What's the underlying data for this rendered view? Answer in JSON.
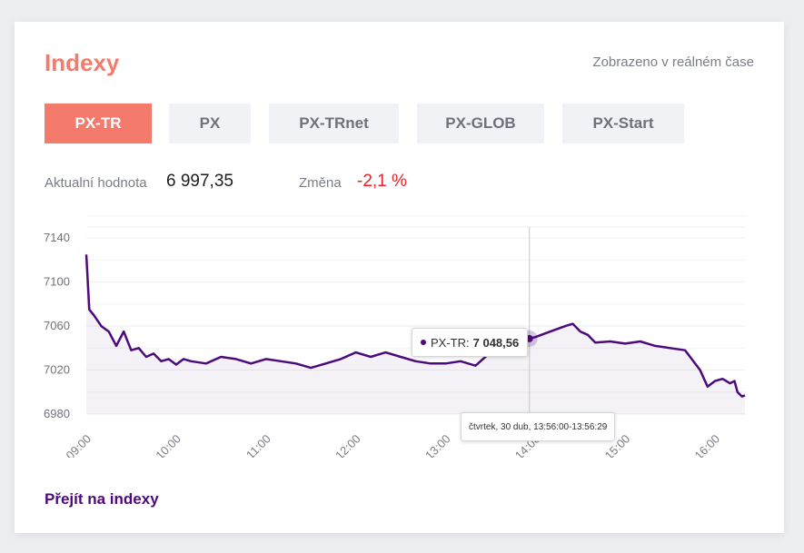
{
  "header": {
    "title": "Indexy",
    "realtime_note": "Zobrazeno v reálném čase"
  },
  "tabs": [
    {
      "label": "PX-TR",
      "active": true
    },
    {
      "label": "PX",
      "active": false
    },
    {
      "label": "PX-TRnet",
      "active": false
    },
    {
      "label": "PX-GLOB",
      "active": false
    },
    {
      "label": "PX-Start",
      "active": false
    }
  ],
  "stats": {
    "current_label": "Aktualní hodnota",
    "current_value": "6 997,35",
    "change_label": "Změna",
    "change_value": "-2,1 %"
  },
  "tooltip": {
    "series_label": "PX-TR:",
    "value": "7 048,56",
    "time": "čtvrtek, 30 dub, 13:56:00-13:56:29"
  },
  "footer": {
    "link_label": "Přejít na indexy"
  },
  "colors": {
    "accent": "#f47b6b",
    "series": "#4c0a7c",
    "negative": "#e8202a"
  },
  "chart_data": {
    "type": "area",
    "ylim": [
      6980,
      7150
    ],
    "yticks": [
      "6980",
      "7020",
      "7060",
      "7100",
      "7140"
    ],
    "xticks": [
      "09:00",
      "10:00",
      "11:00",
      "12:00",
      "13:00",
      "14:00",
      "15:00",
      "16:00"
    ],
    "xrange": [
      "09:00",
      "16:20"
    ],
    "crosshair_time": "13:56",
    "series": [
      {
        "x": [
          "09:00",
          "09:02",
          "09:05",
          "09:10",
          "09:15",
          "09:20",
          "09:25",
          "09:30",
          "09:35",
          "09:40",
          "09:45",
          "09:50",
          "09:55",
          "10:00",
          "10:05",
          "10:10",
          "10:20",
          "10:30",
          "10:40",
          "10:50",
          "11:00",
          "11:10",
          "11:20",
          "11:30",
          "11:40",
          "11:50",
          "12:00",
          "12:10",
          "12:20",
          "12:30",
          "12:40",
          "12:50",
          "13:00",
          "13:10",
          "13:20",
          "13:30",
          "13:40",
          "13:50",
          "13:56",
          "14:00",
          "14:10",
          "14:20",
          "14:25",
          "14:30",
          "14:35",
          "14:40",
          "14:50",
          "15:00",
          "15:10",
          "15:20",
          "15:30",
          "15:40",
          "15:50",
          "15:55",
          "16:00",
          "16:05",
          "16:10",
          "16:13",
          "16:15",
          "16:18",
          "16:20"
        ],
        "values": [
          7125,
          7075,
          7070,
          7060,
          7055,
          7042,
          7055,
          7038,
          7040,
          7032,
          7035,
          7028,
          7030,
          7025,
          7030,
          7028,
          7026,
          7032,
          7030,
          7026,
          7030,
          7028,
          7026,
          7022,
          7026,
          7030,
          7036,
          7032,
          7036,
          7032,
          7028,
          7026,
          7026,
          7028,
          7024,
          7036,
          7038,
          7046,
          7048.56,
          7050,
          7055,
          7060,
          7062,
          7055,
          7052,
          7045,
          7046,
          7044,
          7046,
          7042,
          7040,
          7038,
          7020,
          7005,
          7010,
          7012,
          7008,
          7010,
          7000,
          6996,
          6997
        ]
      }
    ]
  }
}
